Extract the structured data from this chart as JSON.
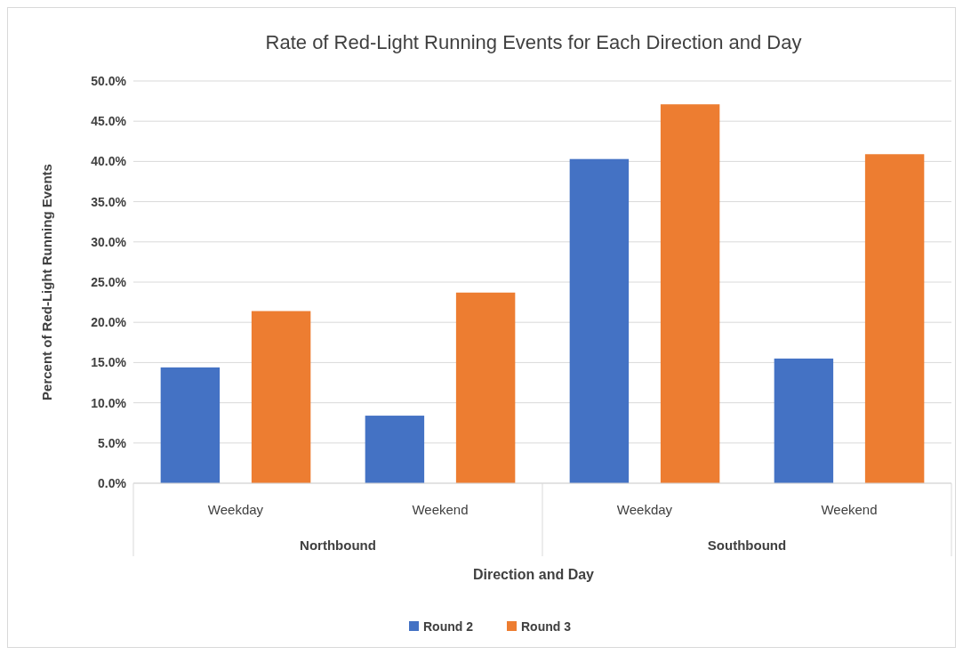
{
  "chart_data": {
    "type": "bar",
    "title": "Rate of Red-Light Running Events for Each Direction and Day",
    "xlabel": "Direction and Day",
    "ylabel": "Percent of Red-Light Running Events",
    "categories": [
      "Weekday",
      "Weekend",
      "Weekday",
      "Weekend"
    ],
    "annotations": [
      "Northbound",
      "Southbound"
    ],
    "series": [
      {
        "name": "Round 2",
        "color": "#4472c4",
        "values": [
          14.4,
          8.4,
          40.3,
          15.5
        ]
      },
      {
        "name": "Round 3",
        "color": "#ed7d31",
        "values": [
          21.4,
          23.7,
          47.1,
          40.9
        ]
      }
    ],
    "ylim": [
      0,
      50
    ],
    "yticks": [
      {
        "value": 0,
        "label": "0.0%"
      },
      {
        "value": 5,
        "label": "5.0%"
      },
      {
        "value": 10,
        "label": "10.0%"
      },
      {
        "value": 15,
        "label": "15.0%"
      },
      {
        "value": 20,
        "label": "20.0%"
      },
      {
        "value": 25,
        "label": "25.0%"
      },
      {
        "value": 30,
        "label": "30.0%"
      },
      {
        "value": 35,
        "label": "35.0%"
      },
      {
        "value": 40,
        "label": "40.0%"
      },
      {
        "value": 45,
        "label": "45.0%"
      },
      {
        "value": 50,
        "label": "50.0%"
      }
    ],
    "grid": "y",
    "legend": "bottom"
  }
}
